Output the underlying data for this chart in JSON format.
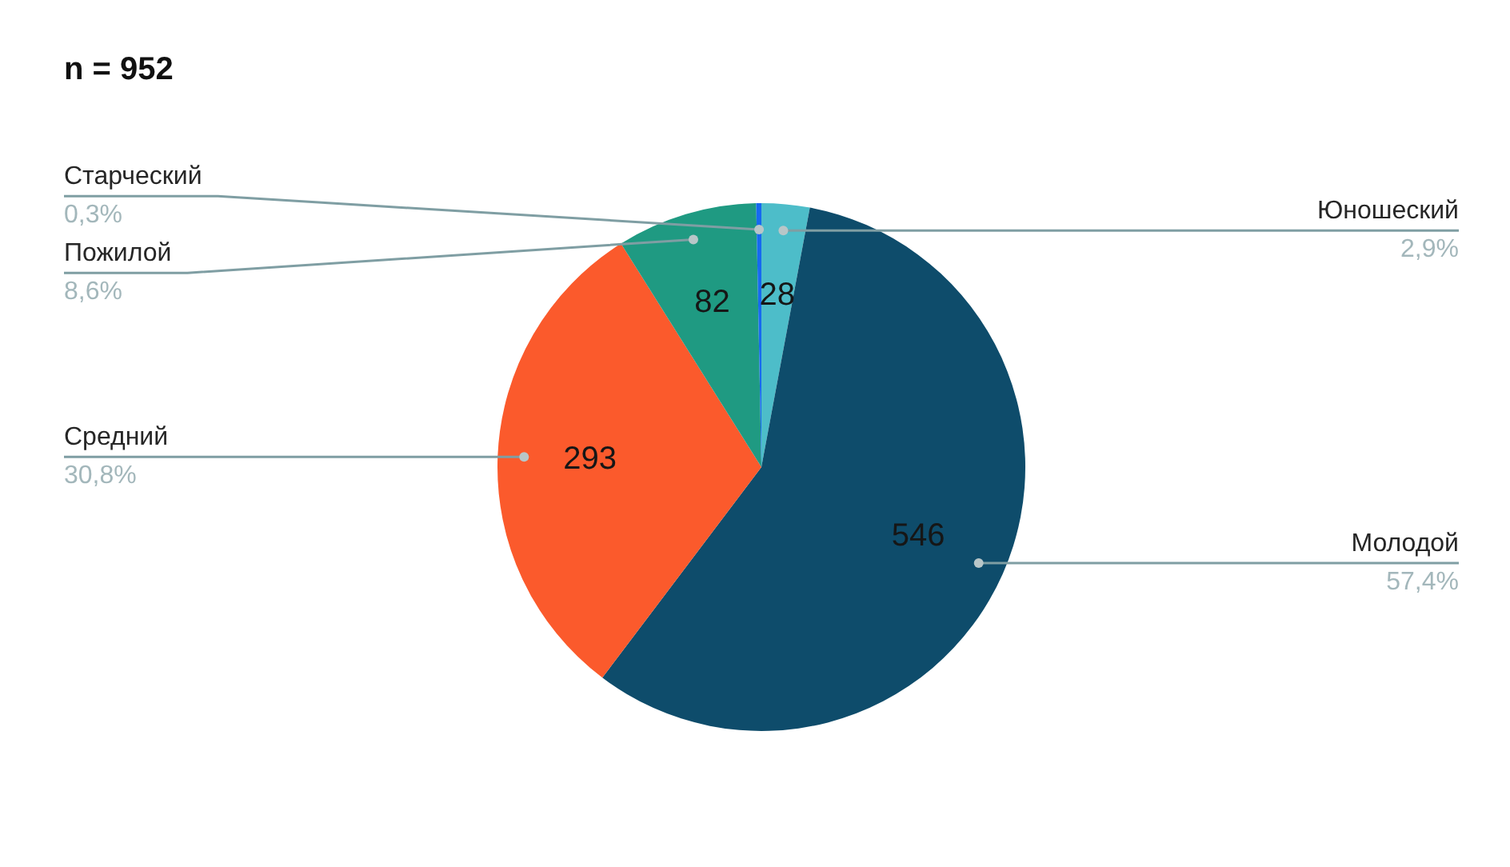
{
  "chart_data": {
    "type": "pie",
    "title": "n = 952",
    "categories": [
      "Юношеский",
      "Молодой",
      "Средний",
      "Пожилой",
      "Старческий"
    ],
    "values": [
      28,
      546,
      293,
      82,
      3
    ],
    "colors": [
      "#4dbdc9",
      "#0e4c6b",
      "#fb5a2c",
      "#1f9a82",
      "#1669f0"
    ],
    "value_labels": [
      "28",
      "546",
      "293",
      "82",
      null
    ],
    "annotations": [
      "2,9%",
      "57,4%",
      "30,8%",
      "8,6%",
      "0,3%"
    ]
  }
}
